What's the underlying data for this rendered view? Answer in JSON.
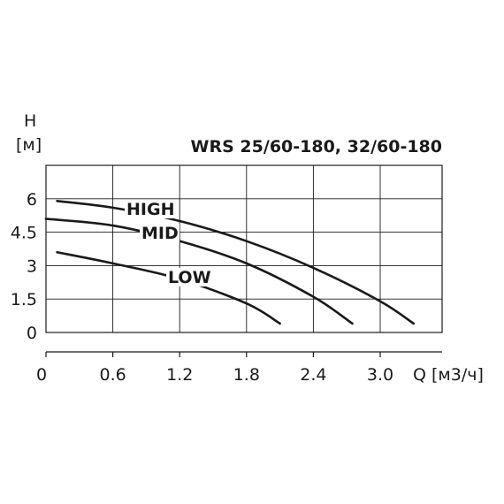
{
  "chart_data": {
    "type": "line",
    "title": "WRS 25/60-180, 32/60-180",
    "ylabel": "H",
    "yunit": "[м]",
    "xlabel": "Q [м3/ч]",
    "xlim": [
      0,
      3.3
    ],
    "ylim": [
      0,
      7.5
    ],
    "x_ticks": [
      "0",
      "0.6",
      "1.2",
      "1.8",
      "2.4",
      "3.0"
    ],
    "y_ticks": [
      "0",
      "1.5",
      "3",
      "4.5",
      "6"
    ],
    "grid": true,
    "series": [
      {
        "name": "HIGH",
        "x": [
          0.1,
          0.6,
          1.2,
          1.8,
          2.4,
          3.0,
          3.3
        ],
        "y": [
          5.9,
          5.6,
          5.0,
          4.1,
          2.9,
          1.4,
          0.4
        ]
      },
      {
        "name": "MID",
        "x": [
          0.0,
          0.6,
          1.2,
          1.8,
          2.4,
          2.75
        ],
        "y": [
          5.1,
          4.8,
          4.1,
          3.1,
          1.6,
          0.4
        ]
      },
      {
        "name": "LOW",
        "x": [
          0.1,
          0.6,
          1.2,
          1.8,
          2.1
        ],
        "y": [
          3.6,
          3.1,
          2.4,
          1.3,
          0.4
        ]
      }
    ]
  }
}
